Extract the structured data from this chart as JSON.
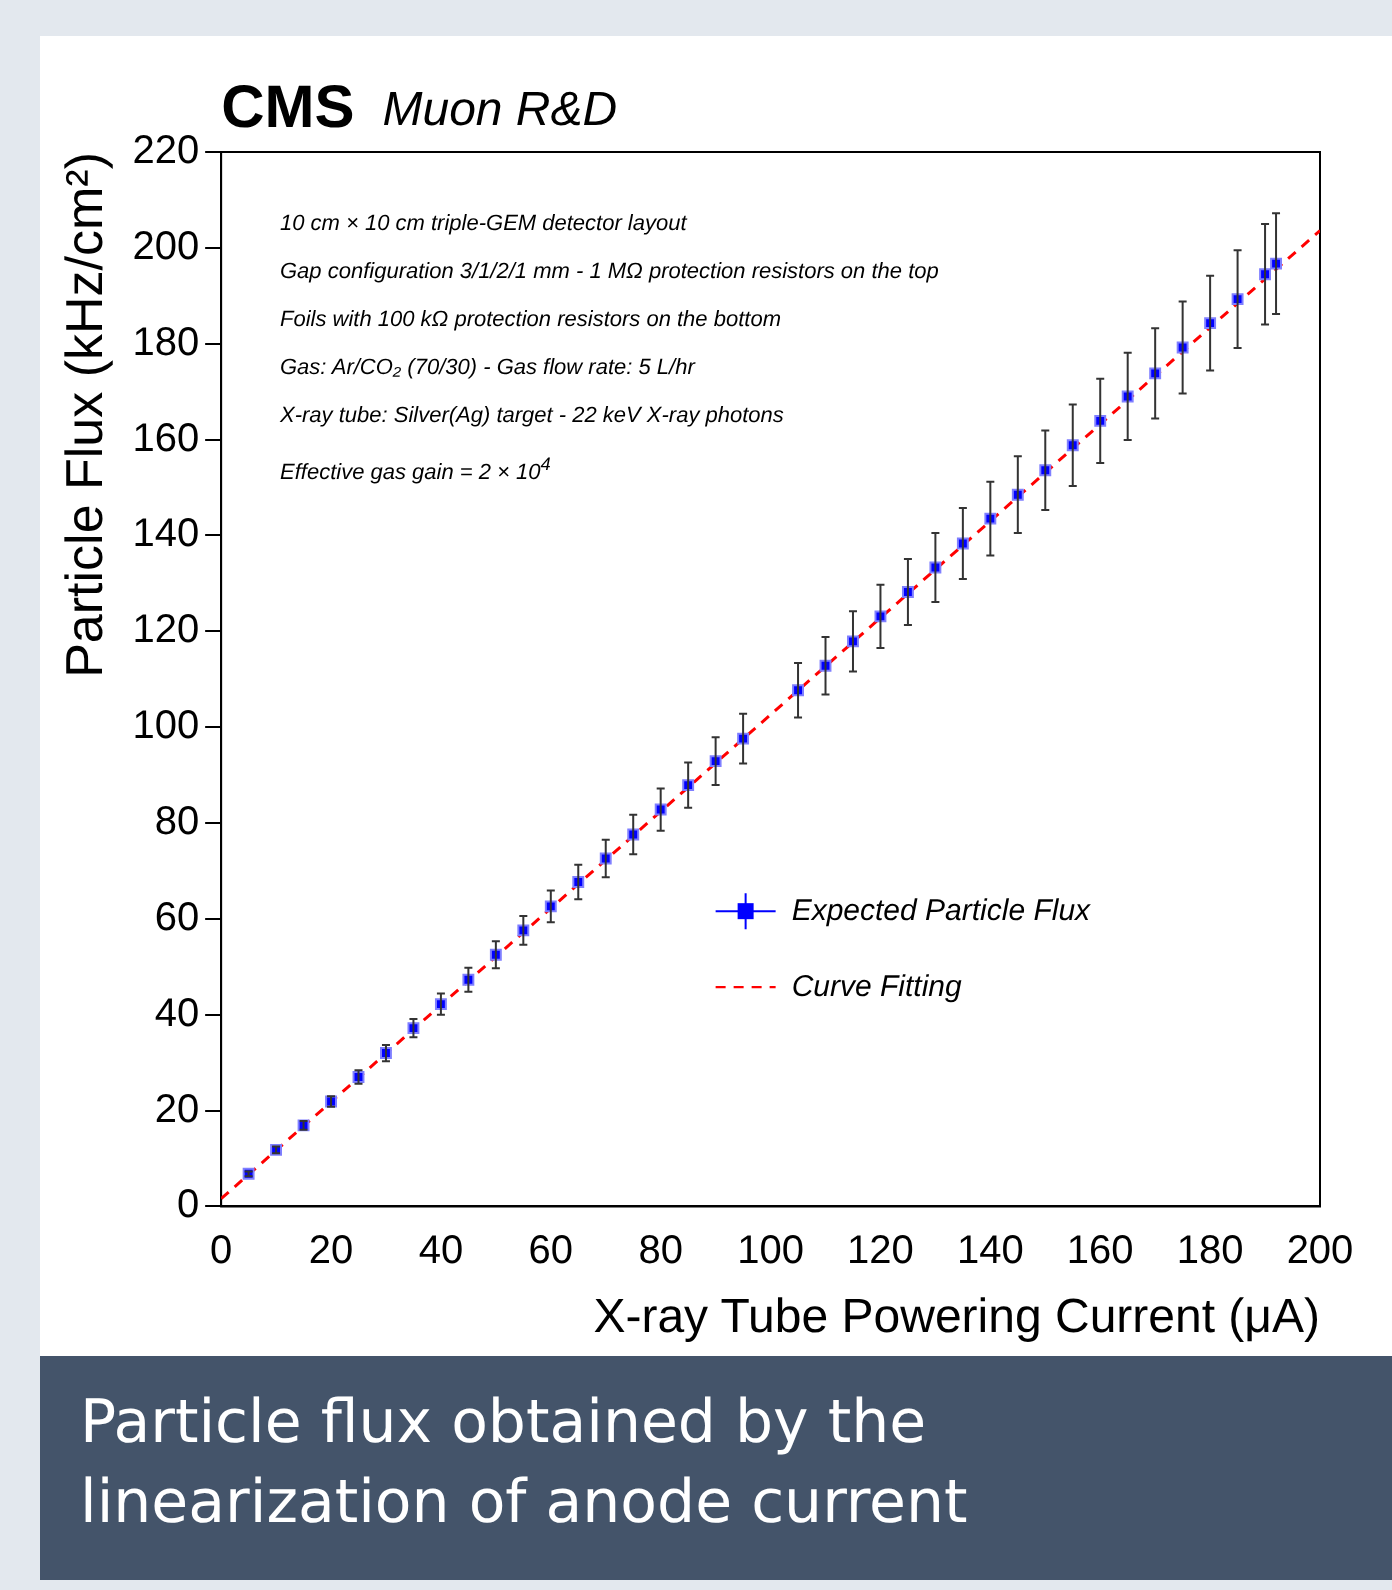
{
  "chart_data": {
    "type": "scatter",
    "title": "CMS",
    "subtitle": "Muon R&D",
    "xlabel": "X-ray Tube Powering Current (μA)",
    "ylabel": "Particle Flux (kHz/cm²)",
    "annotations": [
      "10 cm × 10 cm triple-GEM detector layout",
      "Gap configuration 3/1/2/1 mm - 1 MΩ protection resistors on the top",
      "Foils with 100 kΩ protection resistors on the bottom",
      "Gas: Ar/CO₂ (70/30) - Gas flow rate: 5 L/hr",
      "X-ray tube: Silver(Ag) target - 22 keV X-ray photons",
      "Effective gas gain = 2 × 10$^{4}$",
      "Particle flux obtained by the linearization of anode current"
    ],
    "xlim": [
      0,
      200
    ],
    "xticks": [
      0,
      20,
      40,
      60,
      80,
      100,
      120,
      140,
      160,
      180,
      200
    ],
    "ylim": [
      0,
      220
    ],
    "yticks": [
      0,
      20,
      40,
      60,
      80,
      100,
      120,
      140,
      160,
      180,
      200,
      220
    ],
    "grid": false,
    "legend": "right",
    "marker": "square",
    "series": [
      {
        "name": "Expected Particle Flux",
        "color": "#0000ff",
        "x": [
          5,
          10,
          15,
          20,
          25,
          30,
          35,
          40,
          45,
          50,
          55,
          60,
          65,
          70,
          75,
          80,
          85,
          90,
          95,
          105,
          110,
          115,
          120,
          125,
          130,
          135,
          140,
          145,
          150,
          155,
          160,
          165,
          170,
          175,
          180,
          185,
          190,
          192
        ],
        "values": [
          6.8,
          11.8,
          16.9,
          21.9,
          27.0,
          32.0,
          37.2,
          42.2,
          47.3,
          52.5,
          57.6,
          62.6,
          67.7,
          72.6,
          77.6,
          82.8,
          87.9,
          92.9,
          97.6,
          107.7,
          112.8,
          117.9,
          123.1,
          128.2,
          133.3,
          138.3,
          143.5,
          148.5,
          153.6,
          158.8,
          163.9,
          169.0,
          173.8,
          179.2,
          184.3,
          189.3,
          194.5,
          196.7
        ],
        "errors": [
          0.5,
          0.7,
          0.9,
          1.1,
          1.4,
          1.7,
          1.9,
          2.2,
          2.5,
          2.8,
          3.0,
          3.3,
          3.6,
          3.9,
          4.1,
          4.4,
          4.7,
          5.0,
          5.2,
          5.7,
          6.0,
          6.3,
          6.6,
          6.9,
          7.2,
          7.4,
          7.7,
          8.0,
          8.3,
          8.5,
          8.8,
          9.1,
          9.4,
          9.6,
          9.9,
          10.2,
          10.5,
          10.5
        ]
      },
      {
        "name": "Curve Fitting",
        "type": "line",
        "color": "#ff0000",
        "line_style": "dashed",
        "marker": "none",
        "x": [
          0,
          200
        ],
        "values": [
          1.6,
          203.6
        ]
      }
    ]
  }
}
